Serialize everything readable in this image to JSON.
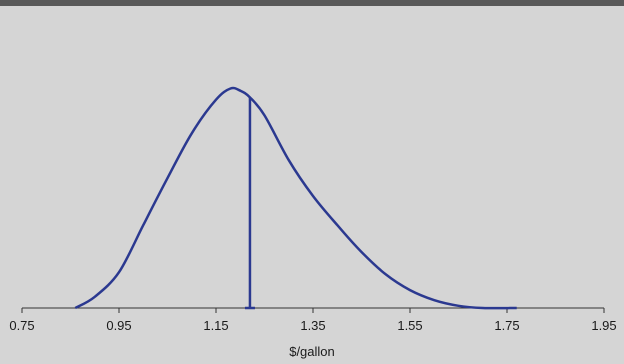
{
  "chart_data": {
    "type": "line",
    "title": "",
    "xlabel": "$/gallon",
    "ylabel": "",
    "xlim": [
      0.75,
      1.95
    ],
    "ylim": [
      0,
      1
    ],
    "x_ticks": [
      "0.75",
      "0.95",
      "1.15",
      "1.35",
      "1.55",
      "1.75",
      "1.95"
    ],
    "grid": false,
    "colors": {
      "line": "#2b3990",
      "axis": "#333333",
      "background": "#d5d5d5"
    },
    "series": [
      {
        "x": [
          0.86,
          0.9,
          0.95,
          1.0,
          1.05,
          1.1,
          1.15,
          1.18,
          1.2,
          1.22,
          1.25,
          1.3,
          1.35,
          1.4,
          1.45,
          1.5,
          1.55,
          1.6,
          1.65,
          1.7,
          1.77
        ],
        "y": [
          0.0,
          0.05,
          0.16,
          0.37,
          0.58,
          0.78,
          0.93,
          0.98,
          0.97,
          0.94,
          0.86,
          0.66,
          0.5,
          0.37,
          0.25,
          0.15,
          0.08,
          0.035,
          0.01,
          0.0,
          0.0
        ]
      }
    ],
    "marker_line": {
      "x": 1.22,
      "y": 0.94
    }
  }
}
